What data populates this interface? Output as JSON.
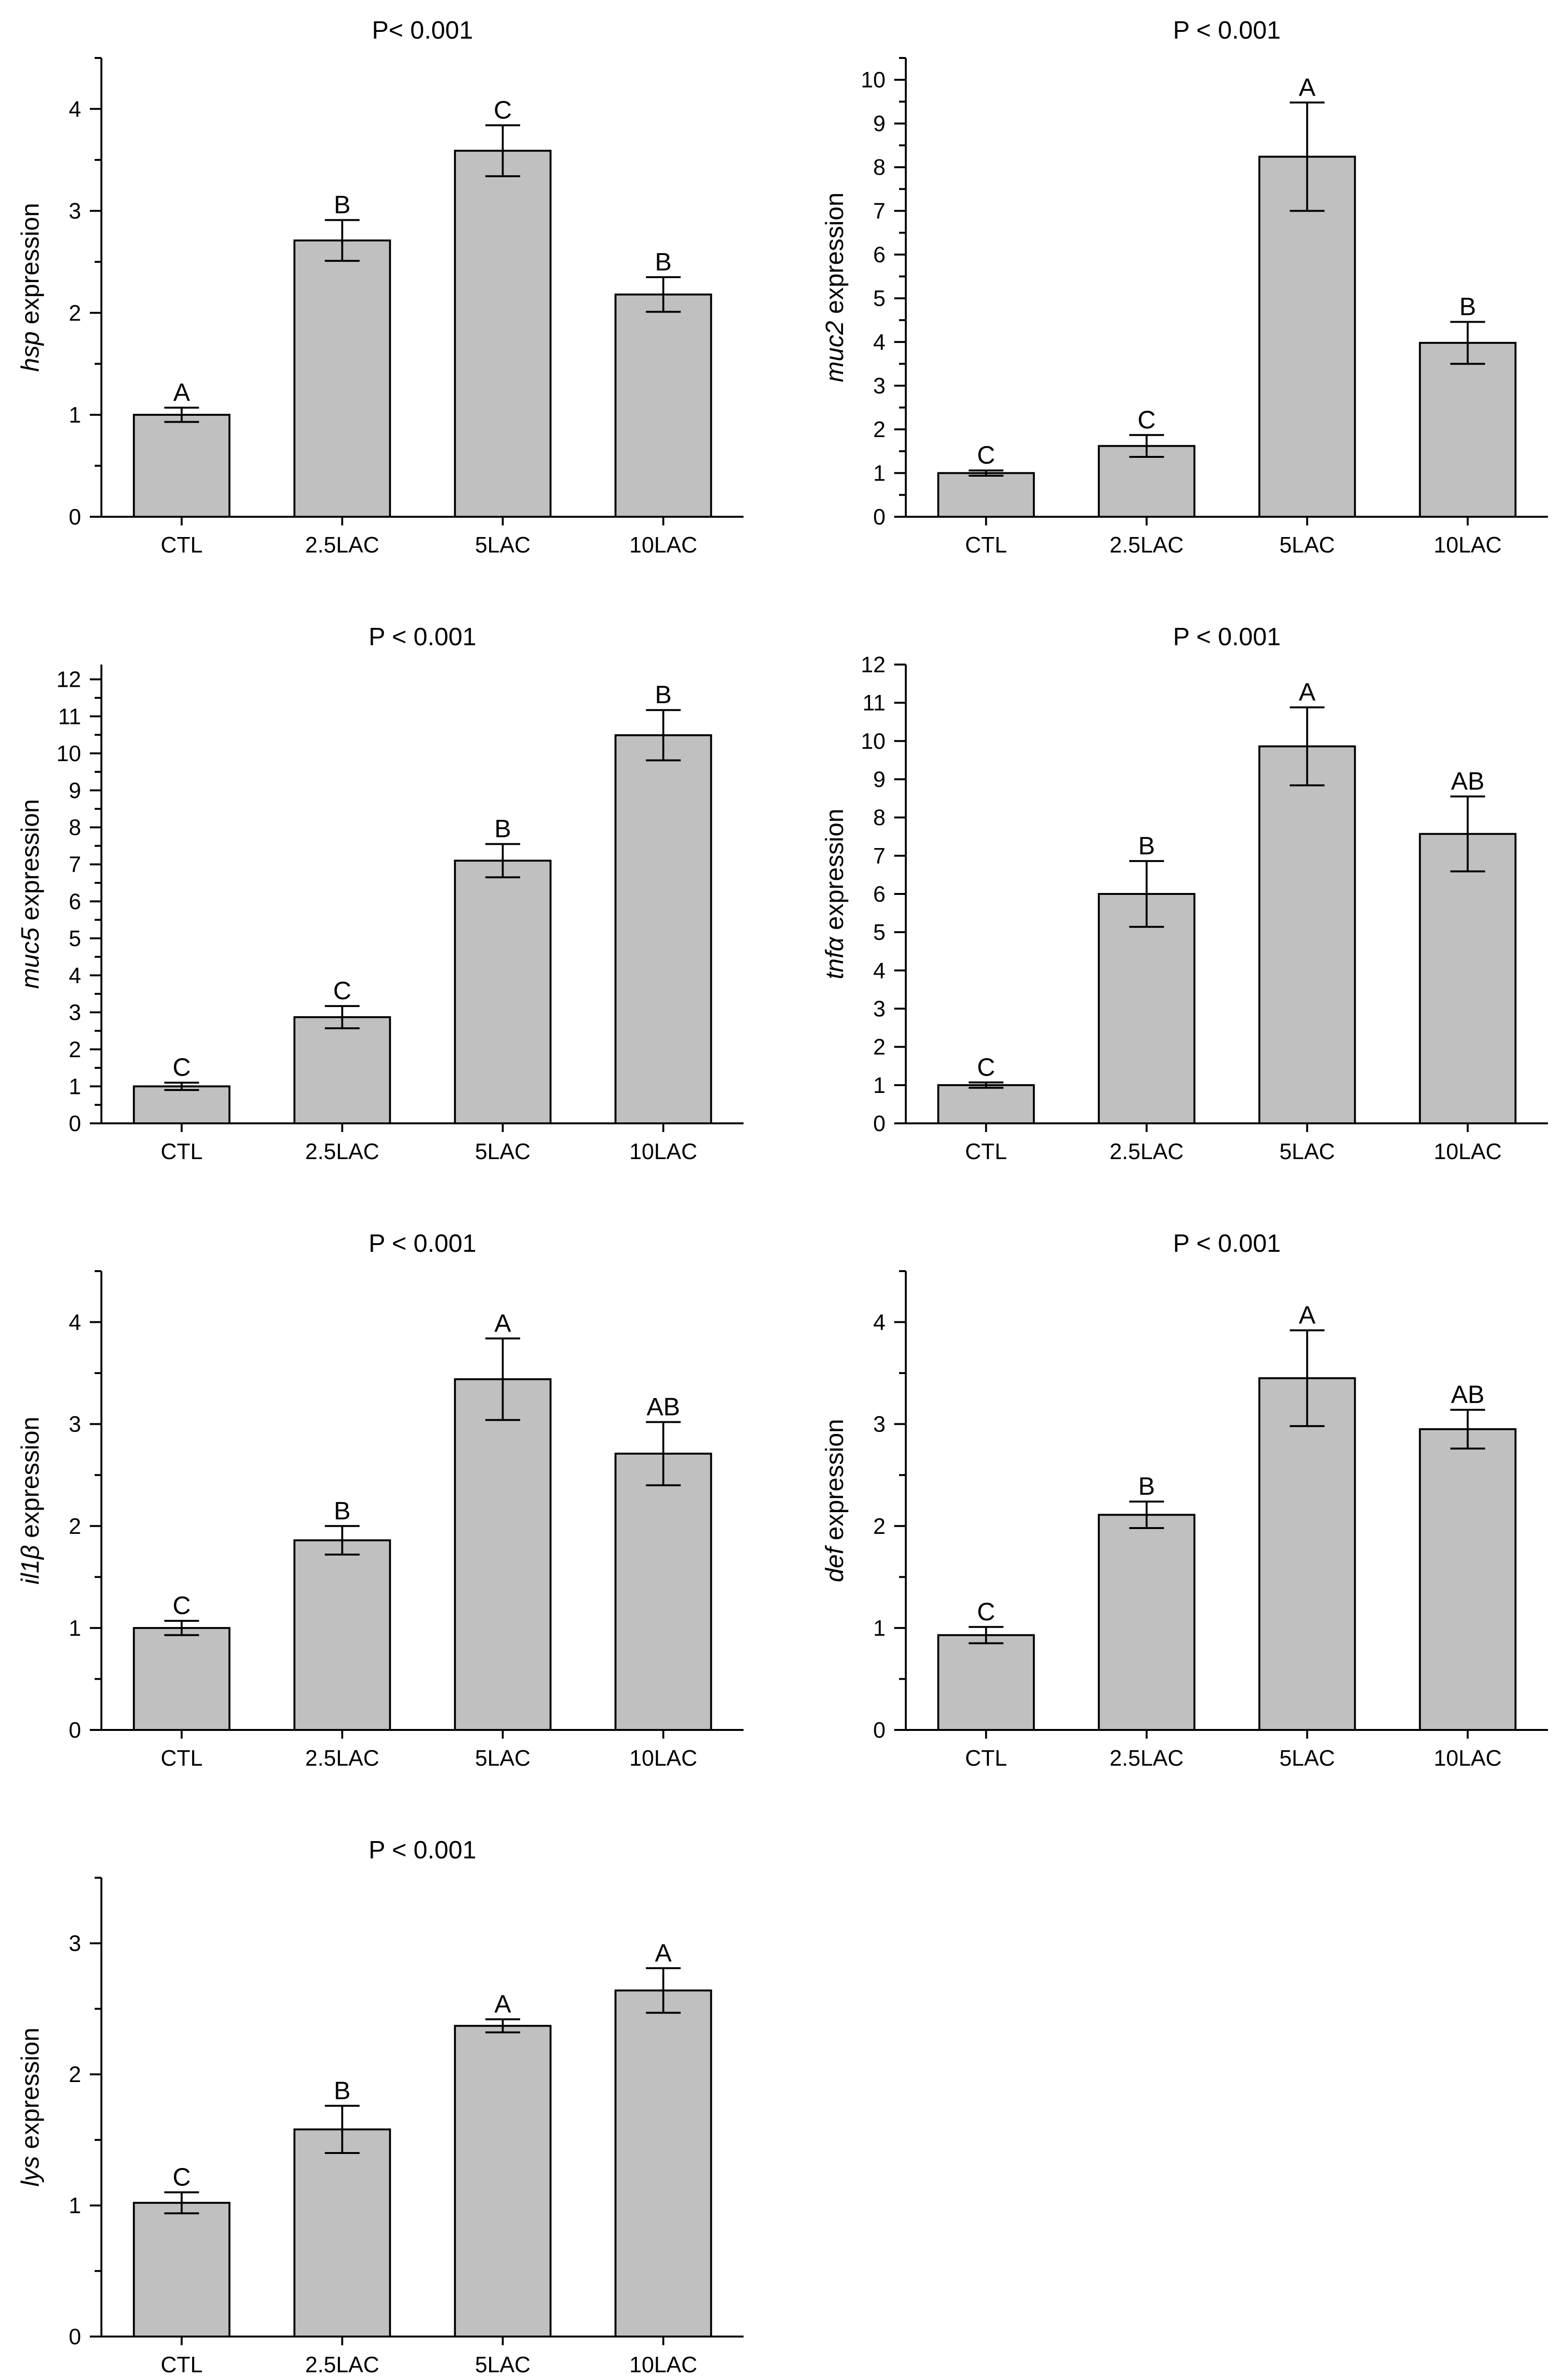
{
  "colors": {
    "bar_fill": "#c0c0c0",
    "bar_stroke": "#000000"
  },
  "chart_data": [
    {
      "type": "bar",
      "title": "P< 0.001",
      "ylabel_italic": "hsp",
      "ylabel_rest": " expression",
      "categories": [
        "CTL",
        "2.5LAC",
        "5LAC",
        "10LAC"
      ],
      "values": [
        1.0,
        2.71,
        3.59,
        2.18
      ],
      "errors": [
        0.07,
        0.2,
        0.25,
        0.17
      ],
      "letters": [
        "A",
        "B",
        "C",
        "B"
      ],
      "ylim": [
        0,
        4.5
      ],
      "yticks": [
        0,
        1,
        2,
        3,
        4
      ],
      "minor_step": 0.5
    },
    {
      "type": "bar",
      "title": "P < 0.001",
      "ylabel_italic": "muc2",
      "ylabel_rest": " expression",
      "categories": [
        "CTL",
        "2.5LAC",
        "5LAC",
        "10LAC"
      ],
      "values": [
        1.0,
        1.62,
        8.24,
        3.98
      ],
      "errors": [
        0.06,
        0.25,
        1.24,
        0.48
      ],
      "letters": [
        "C",
        "C",
        "A",
        "B"
      ],
      "ylim": [
        0,
        10.5
      ],
      "yticks": [
        0,
        1,
        2,
        3,
        4,
        5,
        6,
        7,
        8,
        9,
        10
      ],
      "minor_step": 0.5
    },
    {
      "type": "bar",
      "title": "P < 0.001",
      "ylabel_italic": "muc5",
      "ylabel_rest": " expression",
      "categories": [
        "CTL",
        "2.5LAC",
        "5LAC",
        "10LAC"
      ],
      "values": [
        1.0,
        2.87,
        7.1,
        10.49
      ],
      "errors": [
        0.1,
        0.3,
        0.45,
        0.68
      ],
      "letters": [
        "C",
        "C",
        "B",
        "B"
      ],
      "ylim": [
        0,
        12.4
      ],
      "yticks": [
        0,
        1,
        2,
        3,
        4,
        5,
        6,
        7,
        8,
        9,
        10,
        11,
        12
      ],
      "minor_step": 0.5
    },
    {
      "type": "bar",
      "title": "P < 0.001",
      "ylabel_italic": "tnfα",
      "ylabel_rest": " expression",
      "categories": [
        "CTL",
        "2.5LAC",
        "5LAC",
        "10LAC"
      ],
      "values": [
        1.0,
        6.0,
        9.86,
        7.57
      ],
      "errors": [
        0.07,
        0.86,
        1.02,
        0.98
      ],
      "letters": [
        "C",
        "B",
        "A",
        "AB"
      ],
      "ylim": [
        0,
        12
      ],
      "yticks": [
        0,
        1,
        2,
        3,
        4,
        5,
        6,
        7,
        8,
        9,
        10,
        11,
        12
      ],
      "minor_step": 0
    },
    {
      "type": "bar",
      "title": "P < 0.001",
      "ylabel_italic": "il1β",
      "ylabel_rest": " expression",
      "categories": [
        "CTL",
        "2.5LAC",
        "5LAC",
        "10LAC"
      ],
      "values": [
        1.0,
        1.86,
        3.44,
        2.71
      ],
      "errors": [
        0.07,
        0.14,
        0.4,
        0.31
      ],
      "letters": [
        "C",
        "B",
        "A",
        "AB"
      ],
      "ylim": [
        0,
        4.5
      ],
      "yticks": [
        0,
        1,
        2,
        3,
        4
      ],
      "minor_step": 0.5
    },
    {
      "type": "bar",
      "title": "P < 0.001",
      "ylabel_italic": "def",
      "ylabel_rest": " expression",
      "categories": [
        "CTL",
        "2.5LAC",
        "5LAC",
        "10LAC"
      ],
      "values": [
        0.93,
        2.11,
        3.45,
        2.95
      ],
      "errors": [
        0.08,
        0.13,
        0.47,
        0.19
      ],
      "letters": [
        "C",
        "B",
        "A",
        "AB"
      ],
      "ylim": [
        0,
        4.5
      ],
      "yticks": [
        0,
        1,
        2,
        3,
        4
      ],
      "minor_step": 0.5
    },
    {
      "type": "bar",
      "title": "P < 0.001",
      "ylabel_italic": "lys",
      "ylabel_rest": " expression",
      "categories": [
        "CTL",
        "2.5LAC",
        "5LAC",
        "10LAC"
      ],
      "values": [
        1.02,
        1.58,
        2.37,
        2.64
      ],
      "errors": [
        0.08,
        0.18,
        0.05,
        0.17
      ],
      "letters": [
        "C",
        "B",
        "A",
        "A"
      ],
      "ylim": [
        0,
        3.5
      ],
      "yticks": [
        0,
        1,
        2,
        3
      ],
      "minor_step": 0.5
    }
  ]
}
